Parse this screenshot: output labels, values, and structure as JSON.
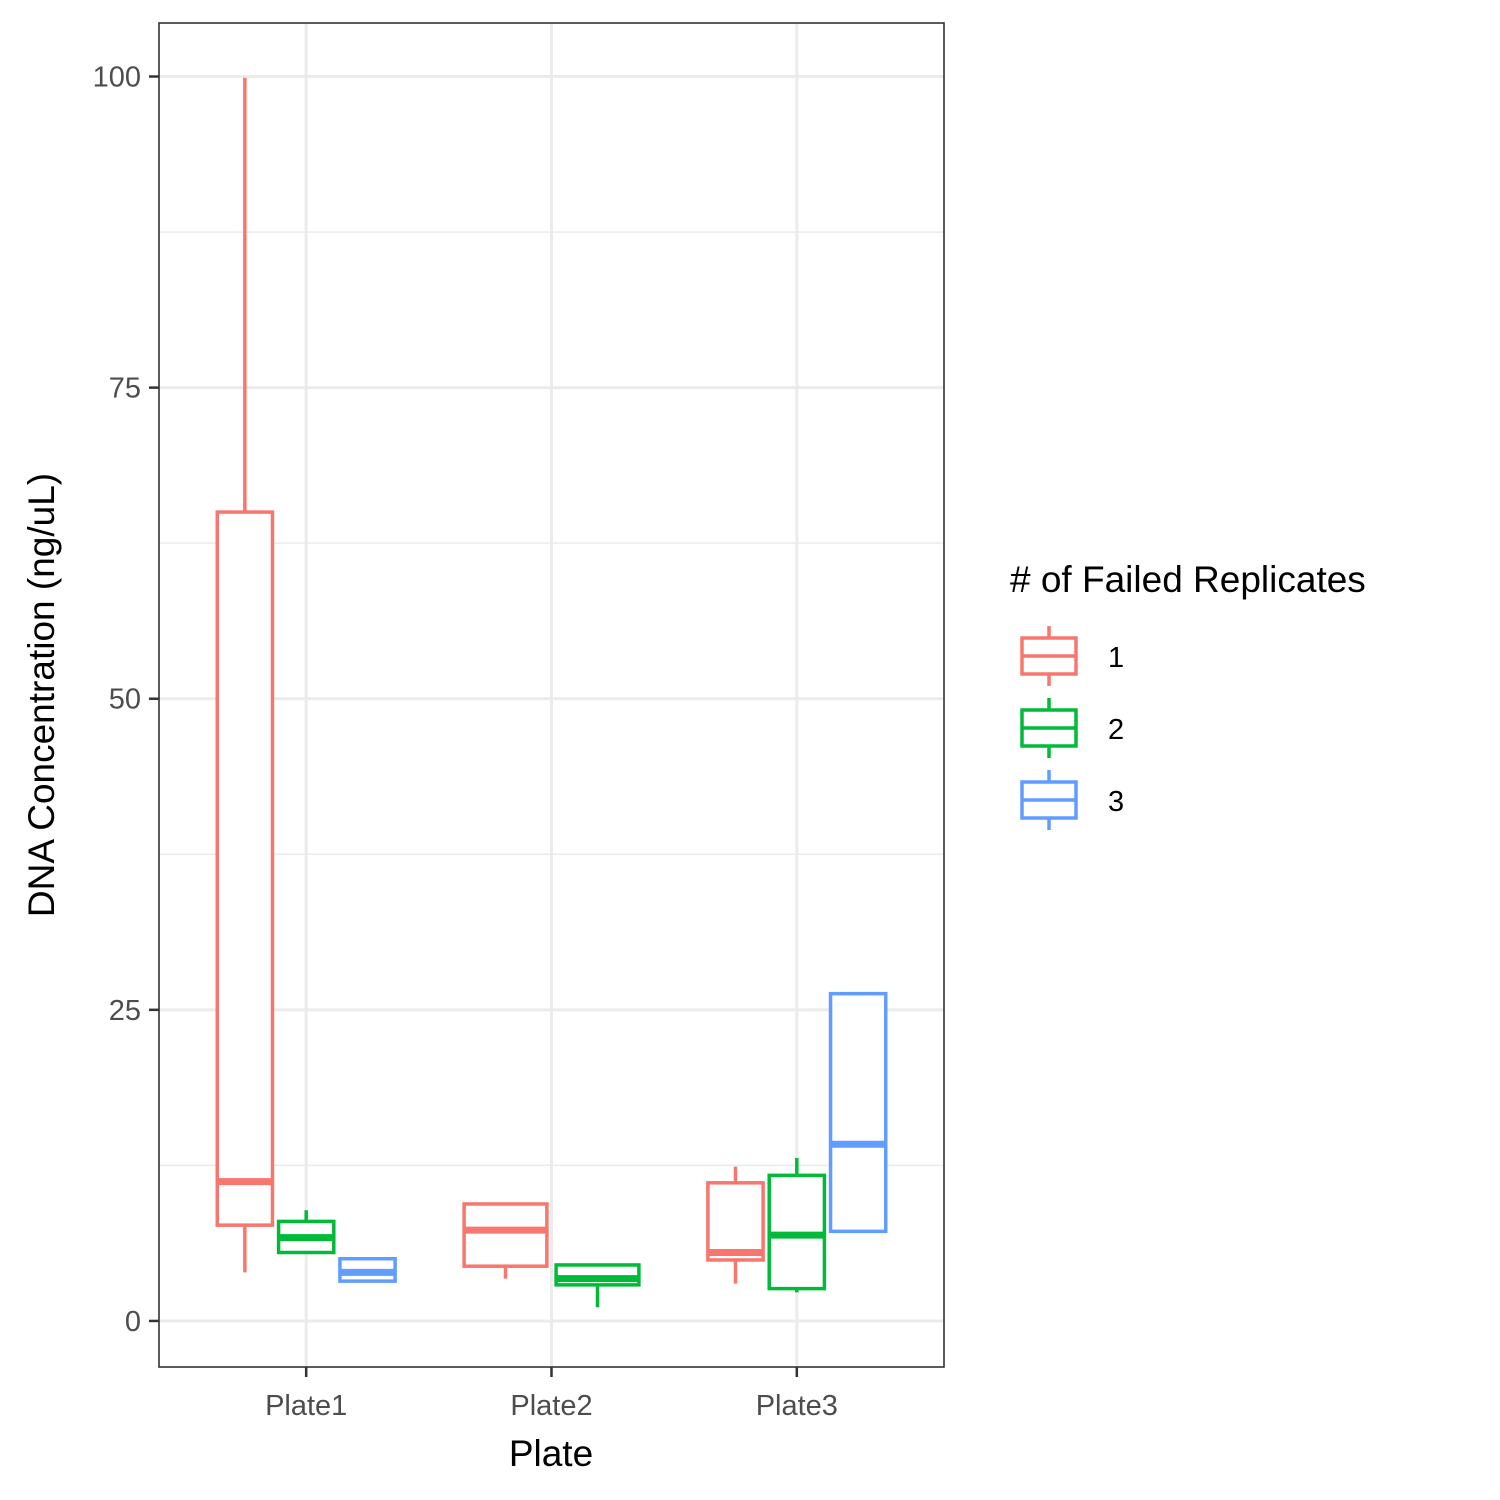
{
  "chart_data": {
    "type": "boxplot",
    "xlabel": "Plate",
    "ylabel": "DNA Concentration (ng/uL)",
    "categories": [
      "Plate1",
      "Plate2",
      "Plate3"
    ],
    "ylim": [
      -3.7,
      104.3
    ],
    "yticks": [
      0,
      25,
      50,
      75,
      100
    ],
    "grid": true,
    "legend": {
      "title": "# of Failed Replicates",
      "position": "right",
      "entries": [
        "1",
        "2",
        "3"
      ]
    },
    "series": [
      {
        "name": "1",
        "color": "#F8766D",
        "boxes": [
          {
            "category": "Plate1",
            "min": 3.9,
            "q1": 7.7,
            "median": 11.2,
            "q3": 65.0,
            "max": 99.9
          },
          {
            "category": "Plate2",
            "min": 3.4,
            "q1": 4.4,
            "median": 7.3,
            "q3": 9.4,
            "max": 9.4
          },
          {
            "category": "Plate3",
            "min": 3.0,
            "q1": 4.9,
            "median": 5.5,
            "q3": 11.1,
            "max": 12.4
          }
        ]
      },
      {
        "name": "2",
        "color": "#00BA38",
        "boxes": [
          {
            "category": "Plate1",
            "min": 5.5,
            "q1": 5.5,
            "median": 6.7,
            "q3": 8.0,
            "max": 8.9
          },
          {
            "category": "Plate2",
            "min": 1.1,
            "q1": 2.9,
            "median": 3.4,
            "q3": 4.5,
            "max": 4.5
          },
          {
            "category": "Plate3",
            "min": 2.3,
            "q1": 2.6,
            "median": 6.9,
            "q3": 11.7,
            "max": 13.1
          }
        ]
      },
      {
        "name": "3",
        "color": "#619CFF",
        "boxes": [
          {
            "category": "Plate1",
            "min": 3.2,
            "q1": 3.2,
            "median": 3.9,
            "q3": 5.0,
            "max": 5.0
          },
          {
            "category": "Plate3",
            "min": 7.2,
            "q1": 7.2,
            "median": 14.2,
            "q3": 26.3,
            "max": 26.3
          }
        ]
      }
    ]
  }
}
